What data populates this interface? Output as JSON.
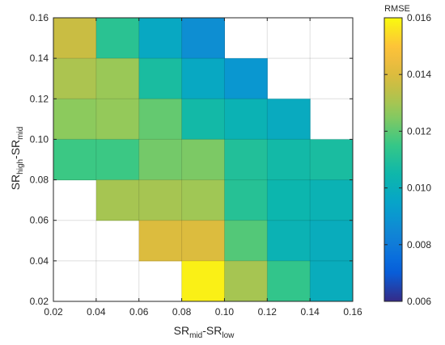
{
  "chart_data": {
    "type": "heatmap",
    "xlabel": {
      "main": "SR",
      "sub1": "mid",
      "dash": "-SR",
      "sub2": "low"
    },
    "ylabel": {
      "main": "SR",
      "sub1": "high",
      "dash": "-SR",
      "sub2": "mid"
    },
    "x_ticks": [
      "0.02",
      "0.04",
      "0.06",
      "0.08",
      "0.10",
      "0.12",
      "0.14",
      "0.16"
    ],
    "y_ticks": [
      "0.02",
      "0.04",
      "0.06",
      "0.08",
      "0.10",
      "0.12",
      "0.14",
      "0.16"
    ],
    "xlim": [
      0.02,
      0.16
    ],
    "ylim": [
      0.02,
      0.16
    ],
    "grid": true,
    "x_bin_centers": [
      0.03,
      0.05,
      0.07,
      0.09,
      0.11,
      0.13,
      0.15
    ],
    "y_bin_centers": [
      0.03,
      0.05,
      0.07,
      0.09,
      0.11,
      0.13,
      0.15
    ],
    "values_rows_top_to_bottom": [
      [
        0.0136,
        0.0112,
        0.0097,
        0.0087,
        null,
        null,
        null
      ],
      [
        0.0131,
        0.0128,
        0.0108,
        0.0097,
        0.009,
        null,
        null
      ],
      [
        0.0126,
        0.0127,
        0.0121,
        0.0106,
        0.0102,
        0.0098,
        null
      ],
      [
        0.0116,
        0.0116,
        0.0123,
        0.0124,
        0.011,
        0.0106,
        0.0108
      ],
      [
        null,
        0.013,
        0.013,
        0.0129,
        0.0111,
        0.0104,
        0.0102
      ],
      [
        null,
        null,
        0.014,
        0.014,
        0.0119,
        0.0102,
        0.0099
      ],
      [
        null,
        null,
        null,
        0.0158,
        0.013,
        0.0114,
        0.0099
      ]
    ],
    "colorbar": {
      "title": "RMSE",
      "min": 0.006,
      "max": 0.016,
      "ticks": [
        "0.006",
        "0.008",
        "0.010",
        "0.012",
        "0.014",
        "0.016"
      ],
      "colormap": "parula"
    }
  }
}
